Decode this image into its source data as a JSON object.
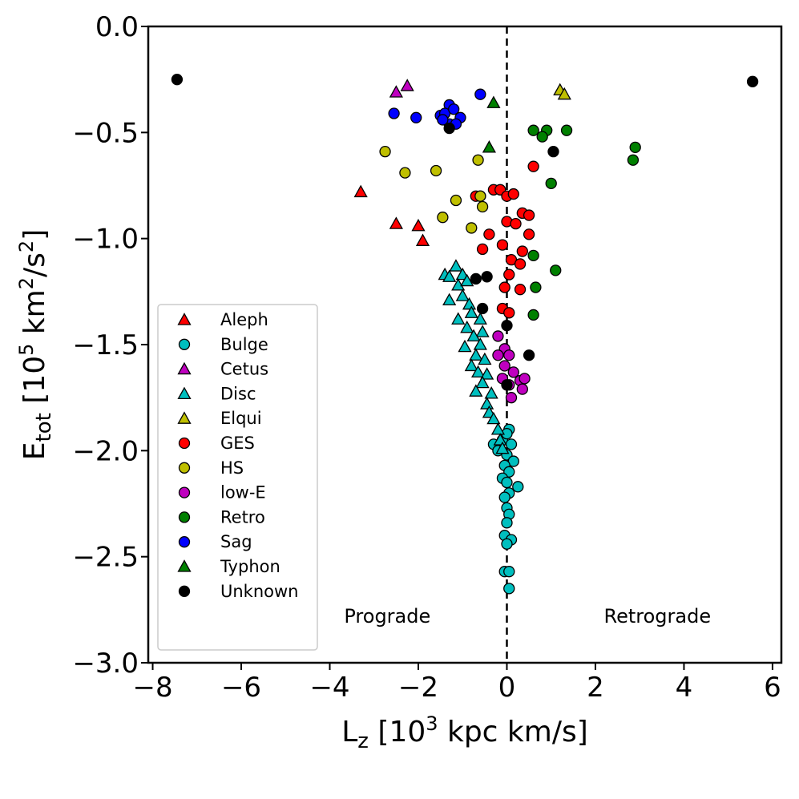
{
  "chart_data": {
    "type": "scatter",
    "xlabel_main": "L",
    "xlabel_sub": "z",
    "xlabel_rest1": " [10",
    "xlabel_sup": "3",
    "xlabel_rest2": " kpc km/s]",
    "ylabel_main": "E",
    "ylabel_sub": "tot",
    "ylabel_rest1": " [10",
    "ylabel_sup1": "5",
    "ylabel_rest2": " km",
    "ylabel_sup2": "2",
    "ylabel_rest3": "/s",
    "ylabel_sup3": "2",
    "ylabel_rest4": "]",
    "xlim": [
      -8.1,
      6.2
    ],
    "ylim": [
      -3.0,
      0.0
    ],
    "xticks": [
      -8,
      -6,
      -4,
      -2,
      0,
      2,
      4,
      6
    ],
    "xtick_labels": [
      "−8",
      "−6",
      "−4",
      "−2",
      "0",
      "2",
      "4",
      "6"
    ],
    "yticks": [
      0.0,
      -0.5,
      -1.0,
      -1.5,
      -2.0,
      -2.5,
      -3.0
    ],
    "ytick_labels": [
      "0.0",
      "−0.5",
      "−1.0",
      "−1.5",
      "−2.0",
      "−2.5",
      "−3.0"
    ],
    "vline_x": 0,
    "annotations": [
      {
        "text": "Prograde",
        "x": -2.7,
        "y": -2.78
      },
      {
        "text": "Retrograde",
        "x": 3.4,
        "y": -2.78
      }
    ],
    "legend_position": "lower-left",
    "series": [
      {
        "name": "Aleph",
        "marker": "triangle",
        "color": "#ff0000",
        "points": [
          [
            -3.3,
            -0.78
          ],
          [
            -2.5,
            -0.93
          ],
          [
            -2.0,
            -0.94
          ],
          [
            -1.9,
            -1.01
          ]
        ]
      },
      {
        "name": "Bulge",
        "marker": "circle",
        "color": "#00bfbf",
        "points": [
          [
            0.05,
            -1.9
          ],
          [
            -0.1,
            -1.95
          ],
          [
            0.0,
            -1.92
          ],
          [
            -0.3,
            -1.97
          ],
          [
            0.1,
            -1.97
          ],
          [
            -0.2,
            -2.0
          ],
          [
            0.0,
            -2.02
          ],
          [
            0.15,
            -2.05
          ],
          [
            -0.05,
            -2.07
          ],
          [
            0.05,
            -2.1
          ],
          [
            -0.1,
            -2.13
          ],
          [
            0.0,
            -2.15
          ],
          [
            0.25,
            -2.17
          ],
          [
            0.05,
            -2.2
          ],
          [
            -0.05,
            -2.22
          ],
          [
            0.0,
            -2.27
          ],
          [
            0.05,
            -2.3
          ],
          [
            0.0,
            -2.34
          ],
          [
            -0.05,
            -2.4
          ],
          [
            0.1,
            -2.42
          ],
          [
            0.0,
            -2.44
          ],
          [
            -0.05,
            -2.57
          ],
          [
            0.05,
            -2.57
          ],
          [
            0.05,
            -2.65
          ]
        ]
      },
      {
        "name": "Cetus",
        "marker": "triangle",
        "color": "#bf00bf",
        "points": [
          [
            -2.5,
            -0.31
          ],
          [
            -2.25,
            -0.28
          ]
        ]
      },
      {
        "name": "Disc",
        "marker": "triangle",
        "color": "#00bfbf",
        "points": [
          [
            -1.4,
            -1.17
          ],
          [
            -1.15,
            -1.13
          ],
          [
            -1.3,
            -1.18
          ],
          [
            -1.0,
            -1.17
          ],
          [
            -1.1,
            -1.22
          ],
          [
            -0.9,
            -1.2
          ],
          [
            -1.3,
            -1.29
          ],
          [
            -1.0,
            -1.27
          ],
          [
            -0.85,
            -1.31
          ],
          [
            -0.8,
            -1.35
          ],
          [
            -1.1,
            -1.38
          ],
          [
            -0.6,
            -1.38
          ],
          [
            -0.9,
            -1.42
          ],
          [
            -0.55,
            -1.44
          ],
          [
            -0.75,
            -1.46
          ],
          [
            -0.6,
            -1.5
          ],
          [
            -0.95,
            -1.51
          ],
          [
            -0.7,
            -1.55
          ],
          [
            -0.5,
            -1.57
          ],
          [
            -0.8,
            -1.6
          ],
          [
            -0.65,
            -1.63
          ],
          [
            -0.45,
            -1.64
          ],
          [
            -0.55,
            -1.68
          ],
          [
            -0.7,
            -1.72
          ],
          [
            -0.35,
            -1.73
          ],
          [
            -0.45,
            -1.78
          ],
          [
            -0.4,
            -1.82
          ],
          [
            -0.3,
            -1.85
          ],
          [
            -0.2,
            -1.9
          ],
          [
            -0.15,
            -1.95
          ],
          [
            -0.1,
            -1.99
          ]
        ]
      },
      {
        "name": "Elqui",
        "marker": "triangle",
        "color": "#bfbf00",
        "points": [
          [
            1.2,
            -0.3
          ],
          [
            1.3,
            -0.32
          ]
        ]
      },
      {
        "name": "GES",
        "marker": "circle",
        "color": "#ff0000",
        "points": [
          [
            -0.3,
            -0.77
          ],
          [
            -0.15,
            -0.77
          ],
          [
            0.0,
            -0.8
          ],
          [
            0.15,
            -0.79
          ],
          [
            -0.6,
            -0.8
          ],
          [
            0.35,
            -0.88
          ],
          [
            0.5,
            -0.89
          ],
          [
            0.0,
            -0.92
          ],
          [
            0.2,
            -0.93
          ],
          [
            -0.4,
            -0.98
          ],
          [
            0.5,
            -0.98
          ],
          [
            -0.1,
            -1.03
          ],
          [
            -0.55,
            -1.05
          ],
          [
            0.35,
            -1.06
          ],
          [
            0.1,
            -1.1
          ],
          [
            0.3,
            -1.12
          ],
          [
            0.05,
            -1.17
          ],
          [
            -0.05,
            -1.23
          ],
          [
            0.3,
            -1.24
          ],
          [
            -0.1,
            -1.33
          ],
          [
            0.05,
            -1.35
          ],
          [
            0.6,
            -0.66
          ],
          [
            -0.7,
            -0.8
          ]
        ]
      },
      {
        "name": "HS",
        "marker": "circle",
        "color": "#bfbf00",
        "points": [
          [
            -2.75,
            -0.59
          ],
          [
            -2.3,
            -0.69
          ],
          [
            -1.6,
            -0.68
          ],
          [
            -0.65,
            -0.63
          ],
          [
            -1.15,
            -0.82
          ],
          [
            -0.6,
            -0.8
          ],
          [
            -0.55,
            -0.85
          ],
          [
            -1.45,
            -0.9
          ],
          [
            -0.8,
            -0.95
          ]
        ]
      },
      {
        "name": "low-E",
        "marker": "circle",
        "color": "#bf00bf",
        "points": [
          [
            -0.2,
            -1.46
          ],
          [
            -0.05,
            -1.52
          ],
          [
            -0.2,
            -1.55
          ],
          [
            0.05,
            -1.55
          ],
          [
            -0.05,
            -1.6
          ],
          [
            0.15,
            -1.63
          ],
          [
            -0.1,
            -1.66
          ],
          [
            0.05,
            -1.69
          ],
          [
            0.3,
            -1.67
          ],
          [
            0.4,
            -1.66
          ],
          [
            0.35,
            -1.71
          ],
          [
            0.1,
            -1.75
          ]
        ]
      },
      {
        "name": "Retro",
        "marker": "circle",
        "color": "#008000",
        "points": [
          [
            0.6,
            -0.49
          ],
          [
            0.9,
            -0.49
          ],
          [
            1.35,
            -0.49
          ],
          [
            0.8,
            -0.52
          ],
          [
            2.9,
            -0.57
          ],
          [
            2.85,
            -0.63
          ],
          [
            1.0,
            -0.74
          ],
          [
            0.6,
            -1.08
          ],
          [
            1.1,
            -1.15
          ],
          [
            0.65,
            -1.23
          ],
          [
            0.6,
            -1.36
          ]
        ]
      },
      {
        "name": "Sag",
        "marker": "circle",
        "color": "#0000ff",
        "points": [
          [
            -2.55,
            -0.41
          ],
          [
            -2.05,
            -0.43
          ],
          [
            -1.5,
            -0.42
          ],
          [
            -1.3,
            -0.37
          ],
          [
            -1.4,
            -0.41
          ],
          [
            -1.2,
            -0.39
          ],
          [
            -1.05,
            -0.43
          ],
          [
            -1.3,
            -0.46
          ],
          [
            -1.15,
            -0.46
          ],
          [
            -1.45,
            -0.44
          ],
          [
            -0.6,
            -0.32
          ]
        ]
      },
      {
        "name": "Typhon",
        "marker": "triangle",
        "color": "#008000",
        "points": [
          [
            -0.3,
            -0.36
          ],
          [
            -0.4,
            -0.57
          ]
        ]
      },
      {
        "name": "Unknown",
        "marker": "circle",
        "color": "#000000",
        "points": [
          [
            -7.45,
            -0.25
          ],
          [
            5.55,
            -0.26
          ],
          [
            -1.3,
            -0.48
          ],
          [
            1.05,
            -0.59
          ],
          [
            -0.7,
            -1.19
          ],
          [
            -0.45,
            -1.18
          ],
          [
            -0.55,
            -1.33
          ],
          [
            0.0,
            -1.41
          ],
          [
            0.5,
            -1.55
          ],
          [
            0.0,
            -1.69
          ]
        ]
      }
    ]
  }
}
